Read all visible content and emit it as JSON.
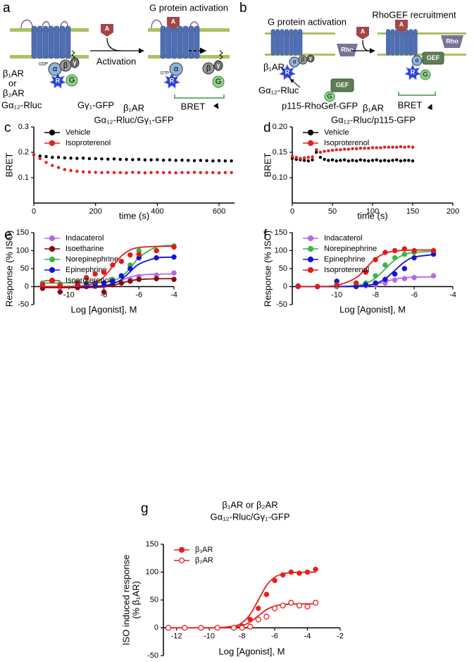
{
  "diagram_a": {
    "letter": "a",
    "title": "G protein activation",
    "receptor": [
      "β₁AR",
      "or",
      "β₂AR"
    ],
    "step": "Activation",
    "donor": "Gα₁₂-Rluc",
    "acceptor": "Gγ₁-GFP",
    "readout": "BRET",
    "agonist": "A",
    "before": "GDP",
    "after": "GTP",
    "subunits": {
      "alpha": "α",
      "beta": "β",
      "gamma": "γ",
      "rluc": "R",
      "gfp": "G"
    }
  },
  "diagram_b": {
    "letter": "b",
    "title_left": "G protein activation",
    "title_right": "RhoGEF recruitment",
    "receptor": "β₁AR",
    "donor": "Gα₁₂-Rluc",
    "acceptor": "p115-RhoGef-GFP",
    "readout": "BRET",
    "agonist": "A",
    "rho": "Rho",
    "gef": "GEF",
    "subunits": {
      "alpha": "α",
      "beta": "β",
      "gamma": "γ",
      "rluc": "R",
      "gfp": "G"
    }
  },
  "chart_data": [
    {
      "type": "scatter",
      "panel": "c",
      "title": [
        "β₁AR",
        "Gα₁₂-Rluc/Gγ₁-GFP"
      ],
      "xlabel": "time (s)",
      "ylabel": "BRET",
      "x": [
        0,
        20,
        40,
        60,
        80,
        100,
        120,
        140,
        160,
        180,
        200,
        220,
        240,
        260,
        280,
        300,
        320,
        340,
        360,
        380,
        400,
        420,
        440,
        460,
        480,
        500,
        520,
        540,
        560,
        580,
        600,
        620,
        640
      ],
      "xlim": [
        0,
        650
      ],
      "xticks": [
        0,
        200,
        400,
        600
      ],
      "ylim": [
        0,
        0.3
      ],
      "yticks": [
        0.1,
        0.2,
        0.3
      ],
      "legend": "top-left",
      "series": [
        {
          "name": "Vehicle",
          "color": "#000000",
          "values": [
            0.19,
            0.185,
            0.183,
            0.18,
            0.18,
            0.178,
            0.177,
            0.176,
            0.177,
            0.175,
            0.175,
            0.174,
            0.173,
            0.174,
            0.172,
            0.172,
            0.171,
            0.172,
            0.17,
            0.17,
            0.171,
            0.169,
            0.17,
            0.168,
            0.169,
            0.168,
            0.167,
            0.168,
            0.167,
            0.166,
            0.167,
            0.166,
            0.166
          ]
        },
        {
          "name": "Isoproterenol",
          "color": "#e8201c",
          "values": [
            0.19,
            0.175,
            0.16,
            0.148,
            0.14,
            0.132,
            0.128,
            0.125,
            0.123,
            0.122,
            0.121,
            0.12,
            0.121,
            0.12,
            0.12,
            0.119,
            0.121,
            0.12,
            0.119,
            0.12,
            0.121,
            0.12,
            0.12,
            0.119,
            0.12,
            0.12,
            0.121,
            0.12,
            0.12,
            0.12,
            0.119,
            0.12,
            0.12
          ]
        }
      ]
    },
    {
      "type": "scatter",
      "panel": "d",
      "title": [
        "β₁AR",
        "Gα₁₂-Rluc/p115-GFP"
      ],
      "xlabel": "time (s)",
      "ylabel": "BRET",
      "x": [
        0,
        5,
        10,
        15,
        20,
        25,
        30,
        35,
        40,
        45,
        50,
        55,
        60,
        65,
        70,
        75,
        80,
        85,
        90,
        95,
        100,
        105,
        110,
        115,
        120,
        125,
        130,
        135,
        140,
        145,
        150
      ],
      "xlim": [
        0,
        200
      ],
      "xticks": [
        0,
        50,
        100,
        150,
        200
      ],
      "ylim": [
        0.05,
        0.2
      ],
      "yticks": [
        {
          "value": 0.1,
          "label": "0.10"
        },
        0.15,
        {
          "value": 0.2,
          "label": "0.20"
        }
      ],
      "legend": "top-left",
      "series": [
        {
          "name": "Vehicle",
          "color": "#000000",
          "values": [
            0.138,
            0.136,
            0.135,
            0.134,
            0.133,
            0.135,
            0.15,
            0.14,
            0.136,
            0.134,
            0.135,
            0.133,
            0.134,
            0.135,
            0.133,
            0.134,
            0.133,
            0.135,
            0.134,
            0.133,
            0.134,
            0.135,
            0.133,
            0.134,
            0.133,
            0.134,
            0.135,
            0.133,
            0.134,
            0.134,
            0.133
          ]
        },
        {
          "name": "Isoproterenol",
          "color": "#e8201c",
          "values": [
            0.142,
            0.14,
            0.138,
            0.139,
            0.14,
            0.141,
            0.155,
            0.15,
            0.152,
            0.153,
            0.154,
            0.155,
            0.155,
            0.156,
            0.156,
            0.157,
            0.157,
            0.158,
            0.158,
            0.158,
            0.159,
            0.159,
            0.159,
            0.16,
            0.16,
            0.16,
            0.16,
            0.161,
            0.16,
            0.161,
            0.16
          ]
        }
      ]
    },
    {
      "type": "scatter",
      "panel": "e",
      "xlabel": "Log [Agonist], M",
      "ylabel": "Response (% ISO)",
      "x": [
        -11.5,
        -10.5,
        -9.5,
        -9,
        -8.5,
        -8,
        -7.5,
        -7,
        -6.5,
        -6,
        -5,
        -4
      ],
      "xlim": [
        -12,
        -4
      ],
      "xticks": [
        -10,
        -8,
        -6,
        -4
      ],
      "ylim": [
        -50,
        150
      ],
      "yticks": [
        -50,
        0,
        50,
        100,
        150
      ],
      "legend": "top-left",
      "series": [
        {
          "name": "Indacaterol",
          "color": "#b768e8",
          "values": [
            0,
            -2,
            0,
            2,
            0,
            3,
            5,
            10,
            20,
            28,
            32,
            38
          ],
          "fit": [
            0,
            0,
            0.1,
            0.35,
            1.1,
            3.2,
            8.4,
            17.5,
            26.6,
            31.8,
            34.7,
            35
          ]
        },
        {
          "name": "Isoetharine",
          "color": "#8b0a0a",
          "values": [
            -5,
            -15,
            -3,
            0,
            2,
            -15,
            5,
            10,
            15,
            20,
            22,
            20
          ],
          "fit": [
            -3,
            -3,
            -3,
            -2.8,
            -2.2,
            -0.7,
            3,
            9.5,
            16,
            19.7,
            21.8,
            22
          ]
        },
        {
          "name": "Norepinephrine",
          "color": "#3db34a",
          "values": [
            10,
            8,
            12,
            10,
            10,
            40,
            20,
            30,
            60,
            100,
            100,
            113
          ],
          "fit": [
            10,
            10,
            10.1,
            10.2,
            10.7,
            12.1,
            16.2,
            27.5,
            50.6,
            80,
            110,
            114.5
          ]
        },
        {
          "name": "Epinephrine",
          "color": "#1414d4",
          "values": [
            5,
            3,
            5,
            5,
            8,
            10,
            15,
            30,
            50,
            80,
            80,
            82
          ],
          "fit": [
            0,
            0,
            0.1,
            0.3,
            0.8,
            2.5,
            7.5,
            19.7,
            41,
            62.3,
            79.5,
            81.8
          ]
        },
        {
          "name": "Isoproterenol",
          "color": "#e01b1b",
          "values": [
            5,
            3,
            10,
            25,
            35,
            40,
            60,
            70,
            88,
            90,
            100,
            110
          ],
          "fit": [
            0,
            0.1,
            1.1,
            3.4,
            10.2,
            26.9,
            56,
            85.1,
            101.8,
            108.5,
            111.7,
            112
          ]
        }
      ]
    },
    {
      "type": "scatter",
      "panel": "f",
      "xlabel": "Log [Agonist], M",
      "ylabel": "Response (% ISO)",
      "x": [
        -12,
        -11,
        -10,
        -9,
        -8.5,
        -8,
        -7.5,
        -7,
        -6.5,
        -6,
        -5
      ],
      "xlim": [
        -12.3,
        -4
      ],
      "xticks": [
        -10,
        -8,
        -6,
        -4
      ],
      "ylim": [
        -50,
        150
      ],
      "yticks": [
        -50,
        0,
        50,
        100,
        150
      ],
      "legend": "top-left",
      "series": [
        {
          "name": "Indacaterol",
          "color": "#b768e8",
          "values": [
            2,
            0,
            0,
            1,
            2,
            5,
            10,
            18,
            22,
            25,
            30
          ],
          "fit": [
            0,
            0,
            0.1,
            0.8,
            2.5,
            6.5,
            13.5,
            20.5,
            24.5,
            26.2,
            26.9
          ]
        },
        {
          "name": "Norepinephrine",
          "color": "#3db34a",
          "values": [
            2,
            0,
            0,
            2,
            10,
            30,
            60,
            80,
            90,
            95,
            98
          ],
          "fit": [
            0,
            0,
            0.3,
            3,
            8.9,
            23.5,
            49,
            74.5,
            89.1,
            95,
            97.7
          ]
        },
        {
          "name": "Epinephrine",
          "color": "#1414d4",
          "values": [
            1,
            0,
            15,
            0,
            5,
            10,
            20,
            35,
            50,
            80,
            90
          ],
          "fit": [
            0,
            0,
            0.1,
            0.9,
            2.8,
            8.2,
            21.6,
            45,
            68.4,
            81.8,
            89.1
          ]
        },
        {
          "name": "Isoproterenol",
          "color": "#e01b1b",
          "values": [
            0,
            0,
            5,
            10,
            40,
            75,
            95,
            100,
            105,
            100,
            100
          ],
          "fit": [
            0,
            0.3,
            3.1,
            24.5,
            51,
            77.5,
            92.7,
            98.8,
            101,
            101.7,
            102
          ]
        }
      ]
    },
    {
      "type": "scatter",
      "panel": "g",
      "title": [
        "β₁AR or β₂AR",
        "Gα₁₂-Rluc/Gγ₁-GFP"
      ],
      "xlabel": "Log [Agonist], M",
      "ylabel": [
        "ISO induced response",
        "(% β₁AR)"
      ],
      "x": [
        -12.5,
        -11.5,
        -10.5,
        -9.5,
        -8.5,
        -8,
        -7.5,
        -7,
        -6.5,
        -6,
        -5.5,
        -5,
        -4.5,
        -4,
        -3.5
      ],
      "xlim": [
        -12.8,
        -2
      ],
      "xticks": [
        -12,
        -10,
        -8,
        -6,
        -4,
        -2
      ],
      "ylim": [
        -50,
        150
      ],
      "yticks": [
        -50,
        0,
        50,
        100,
        150
      ],
      "legend": "top-left",
      "series": [
        {
          "name": "β₁AR",
          "color": "#e8201c",
          "marker": "filled",
          "values": [
            0,
            0,
            0,
            0,
            0,
            3,
            15,
            35,
            60,
            85,
            95,
            100,
            98,
            100,
            105
          ],
          "fit": [
            0,
            0,
            0,
            0.3,
            3.1,
            9.1,
            24,
            50,
            76,
            90.9,
            96.9,
            99,
            99.7,
            99.9,
            100
          ]
        },
        {
          "name": "β₂AR",
          "color": "#e8201c",
          "marker": "open",
          "values": [
            0,
            0,
            0,
            0,
            0,
            0,
            2,
            15,
            20,
            35,
            40,
            45,
            40,
            38,
            45
          ],
          "fit": [
            0,
            0,
            0,
            0.1,
            1.3,
            3.9,
            10.3,
            21.5,
            32.7,
            39.1,
            41.7,
            42.6,
            42.9,
            43,
            43
          ]
        }
      ]
    }
  ]
}
